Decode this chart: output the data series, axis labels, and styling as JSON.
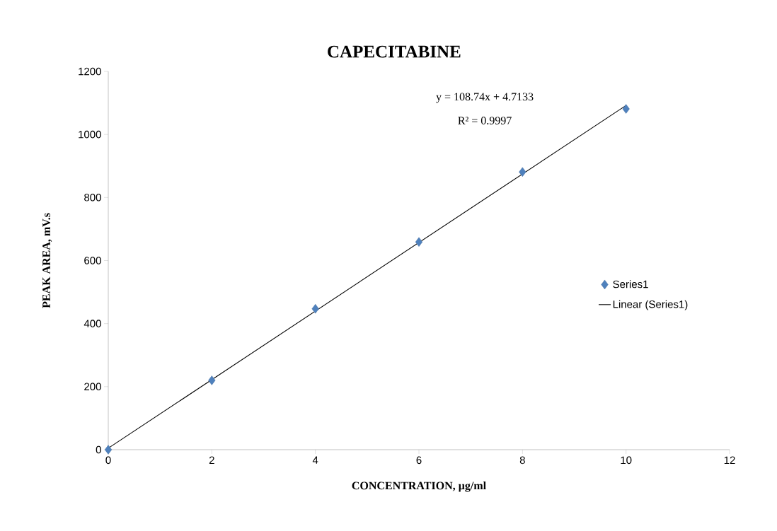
{
  "chart_data": {
    "type": "scatter",
    "title": "CAPECITABINE",
    "xlabel": "CONCENTRATION, µg/ml",
    "ylabel": "PEAK AREA, mV.s",
    "xlim": [
      0,
      12
    ],
    "xticks": [
      0,
      2,
      4,
      6,
      8,
      10,
      12
    ],
    "ylim": [
      0,
      1200
    ],
    "yticks": [
      0,
      200,
      400,
      600,
      800,
      1000,
      1200
    ],
    "grid": false,
    "legend": "right",
    "annotations": [
      "y = 108.74x + 4.7133",
      "R² = 0.9997"
    ],
    "series": [
      {
        "name": "Series1",
        "color": "#4f81bd",
        "marker": "diamond",
        "x": [
          0,
          2,
          4,
          6,
          8,
          10
        ],
        "values": [
          0,
          220,
          447,
          659,
          881,
          1081
        ]
      },
      {
        "name": "Linear (Series1)",
        "type": "line",
        "color": "#000000",
        "marker": "none",
        "line_style": "solid",
        "x": [
          0,
          10
        ],
        "values": [
          4.7,
          1092
        ]
      }
    ]
  }
}
